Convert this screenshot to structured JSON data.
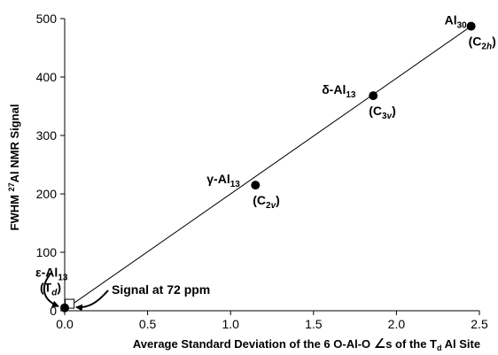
{
  "chart_data": {
    "type": "scatter",
    "title": "",
    "xlabel": {
      "pre": "Average Standard Deviation of the 6 O-Al-O ",
      "angle": "∠",
      "mid": "s of the T",
      "sub": "d",
      "post": " Al Site"
    },
    "ylabel": {
      "pre": "FWHM ",
      "sup": "27",
      "post": "Al  NMR Signal"
    },
    "xlim": [
      0,
      2.5
    ],
    "ylim": [
      0,
      500
    ],
    "xticks": [
      "0.0",
      "0.5",
      "1.0",
      "1.5",
      "2.0",
      "2.5"
    ],
    "xtick_values": [
      0,
      0.5,
      1.0,
      1.5,
      2.0,
      2.5
    ],
    "yticks": [
      "0",
      "100",
      "200",
      "300",
      "400",
      "500"
    ],
    "ytick_values": [
      0,
      100,
      200,
      300,
      400,
      500
    ],
    "grid": false,
    "legend": "none",
    "points": [
      {
        "name": {
          "base": "ε-Al",
          "sub": "13"
        },
        "sym": {
          "base": "T",
          "sub": "d"
        },
        "x": 0.0,
        "y": 5
      },
      {
        "name": {
          "base": "γ-Al",
          "sub": "13"
        },
        "sym": {
          "base": "C",
          "sub": "2v"
        },
        "x": 1.15,
        "y": 215
      },
      {
        "name": {
          "base": "δ-Al",
          "sub": "13"
        },
        "sym": {
          "base": "C",
          "sub": "3v"
        },
        "x": 1.86,
        "y": 368
      },
      {
        "name": {
          "base": "Al",
          "sub": "30"
        },
        "sym": {
          "base": "C",
          "sub": "2h"
        },
        "x": 2.45,
        "y": 487
      }
    ],
    "open_point": {
      "x": 0.03,
      "y": 12
    },
    "trendline": {
      "x": [
        0.0,
        2.45
      ],
      "y": [
        2,
        487
      ]
    },
    "annotation": "Signal at 72 ppm",
    "marker_color": "#000000",
    "line_color": "#000000"
  }
}
